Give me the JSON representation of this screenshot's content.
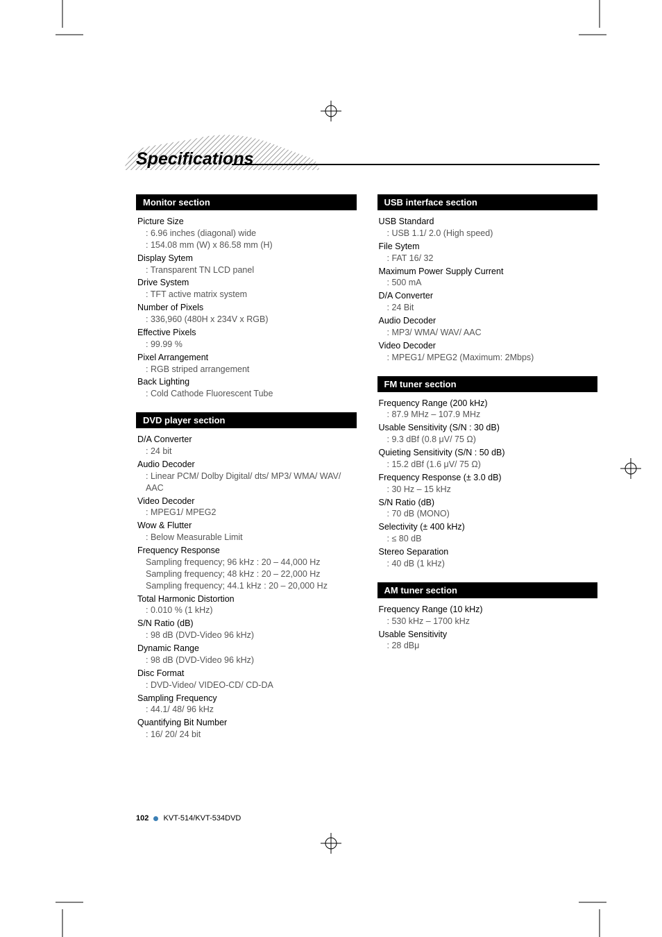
{
  "page_title": "Specifications",
  "footer": {
    "page_number": "102",
    "model": "KVT-514/KVT-534DVD"
  },
  "columns": [
    {
      "sections": [
        {
          "header": "Monitor section",
          "items": [
            {
              "label": "Picture Size",
              "values": [
                ": 6.96 inches (diagonal) wide",
                ": 154.08 mm (W) x 86.58 mm (H)"
              ]
            },
            {
              "label": "Display Sytem",
              "values": [
                ": Transparent TN LCD panel"
              ]
            },
            {
              "label": "Drive System",
              "values": [
                ": TFT active matrix system"
              ]
            },
            {
              "label": "Number of Pixels",
              "values": [
                ": 336,960 (480H x 234V x RGB)"
              ]
            },
            {
              "label": "Effective Pixels",
              "values": [
                ": 99.99 %"
              ]
            },
            {
              "label": "Pixel Arrangement",
              "values": [
                ": RGB striped arrangement"
              ]
            },
            {
              "label": "Back Lighting",
              "values": [
                ": Cold Cathode Fluorescent Tube"
              ]
            }
          ]
        },
        {
          "header": "DVD player section",
          "items": [
            {
              "label": "D/A Converter",
              "values": [
                ": 24 bit"
              ]
            },
            {
              "label": "Audio Decoder",
              "values": [
                ": Linear PCM/ Dolby Digital/ dts/ MP3/ WMA/ WAV/ AAC"
              ]
            },
            {
              "label": "Video Decoder",
              "values": [
                ": MPEG1/ MPEG2"
              ]
            },
            {
              "label": "Wow & Flutter",
              "values": [
                ": Below Measurable Limit"
              ]
            },
            {
              "label": "Frequency Response",
              "values": [
                "Sampling frequency; 96 kHz : 20 – 44,000 Hz",
                "Sampling frequency; 48 kHz : 20 – 22,000 Hz",
                "Sampling frequency; 44.1 kHz : 20 – 20,000 Hz"
              ]
            },
            {
              "label": "Total Harmonic Distortion",
              "values": [
                ": 0.010 % (1 kHz)"
              ]
            },
            {
              "label": "S/N Ratio (dB)",
              "values": [
                ": 98 dB (DVD-Video 96 kHz)"
              ]
            },
            {
              "label": "Dynamic Range",
              "values": [
                ": 98 dB (DVD-Video 96 kHz)"
              ]
            },
            {
              "label": "Disc Format",
              "values": [
                ": DVD-Video/ VIDEO-CD/ CD-DA"
              ]
            },
            {
              "label": "Sampling Frequency",
              "values": [
                ": 44.1/ 48/ 96 kHz"
              ]
            },
            {
              "label": "Quantifying Bit Number",
              "values": [
                ": 16/ 20/ 24 bit"
              ]
            }
          ]
        }
      ]
    },
    {
      "sections": [
        {
          "header": "USB interface section",
          "items": [
            {
              "label": "USB Standard",
              "values": [
                ": USB 1.1/ 2.0 (High speed)"
              ]
            },
            {
              "label": "File Sytem",
              "values": [
                ": FAT 16/ 32"
              ]
            },
            {
              "label": "Maximum Power Supply Current",
              "values": [
                ": 500 mA"
              ]
            },
            {
              "label": "D/A Converter",
              "values": [
                ": 24 Bit"
              ]
            },
            {
              "label": "Audio Decoder",
              "values": [
                ": MP3/ WMA/ WAV/ AAC"
              ]
            },
            {
              "label": "Video Decoder",
              "values": [
                ": MPEG1/ MPEG2 (Maximum: 2Mbps)"
              ]
            }
          ]
        },
        {
          "header": "FM tuner section",
          "items": [
            {
              "label": "Frequency Range (200 kHz)",
              "values": [
                ": 87.9 MHz – 107.9 MHz"
              ]
            },
            {
              "label": "Usable Sensitivity (S/N : 30 dB)",
              "values": [
                ": 9.3 dBf (0.8 μV/ 75 Ω)"
              ]
            },
            {
              "label": "Quieting Sensitivity (S/N : 50 dB)",
              "values": [
                ": 15.2 dBf (1.6 μV/ 75 Ω)"
              ]
            },
            {
              "label": "Frequency Response (± 3.0 dB)",
              "values": [
                ": 30 Hz – 15 kHz"
              ]
            },
            {
              "label": "S/N Ratio (dB)",
              "values": [
                ": 70 dB (MONO)"
              ]
            },
            {
              "label": "Selectivity (± 400 kHz)",
              "values": [
                ": ≤ 80 dB"
              ]
            },
            {
              "label": "Stereo Separation",
              "values": [
                ": 40 dB (1 kHz)"
              ]
            }
          ]
        },
        {
          "header": "AM tuner section",
          "items": [
            {
              "label": "Frequency Range (10 kHz)",
              "values": [
                ": 530 kHz – 1700 kHz"
              ]
            },
            {
              "label": "Usable Sensitivity",
              "values": [
                ": 28 dBμ"
              ]
            }
          ]
        }
      ]
    }
  ]
}
